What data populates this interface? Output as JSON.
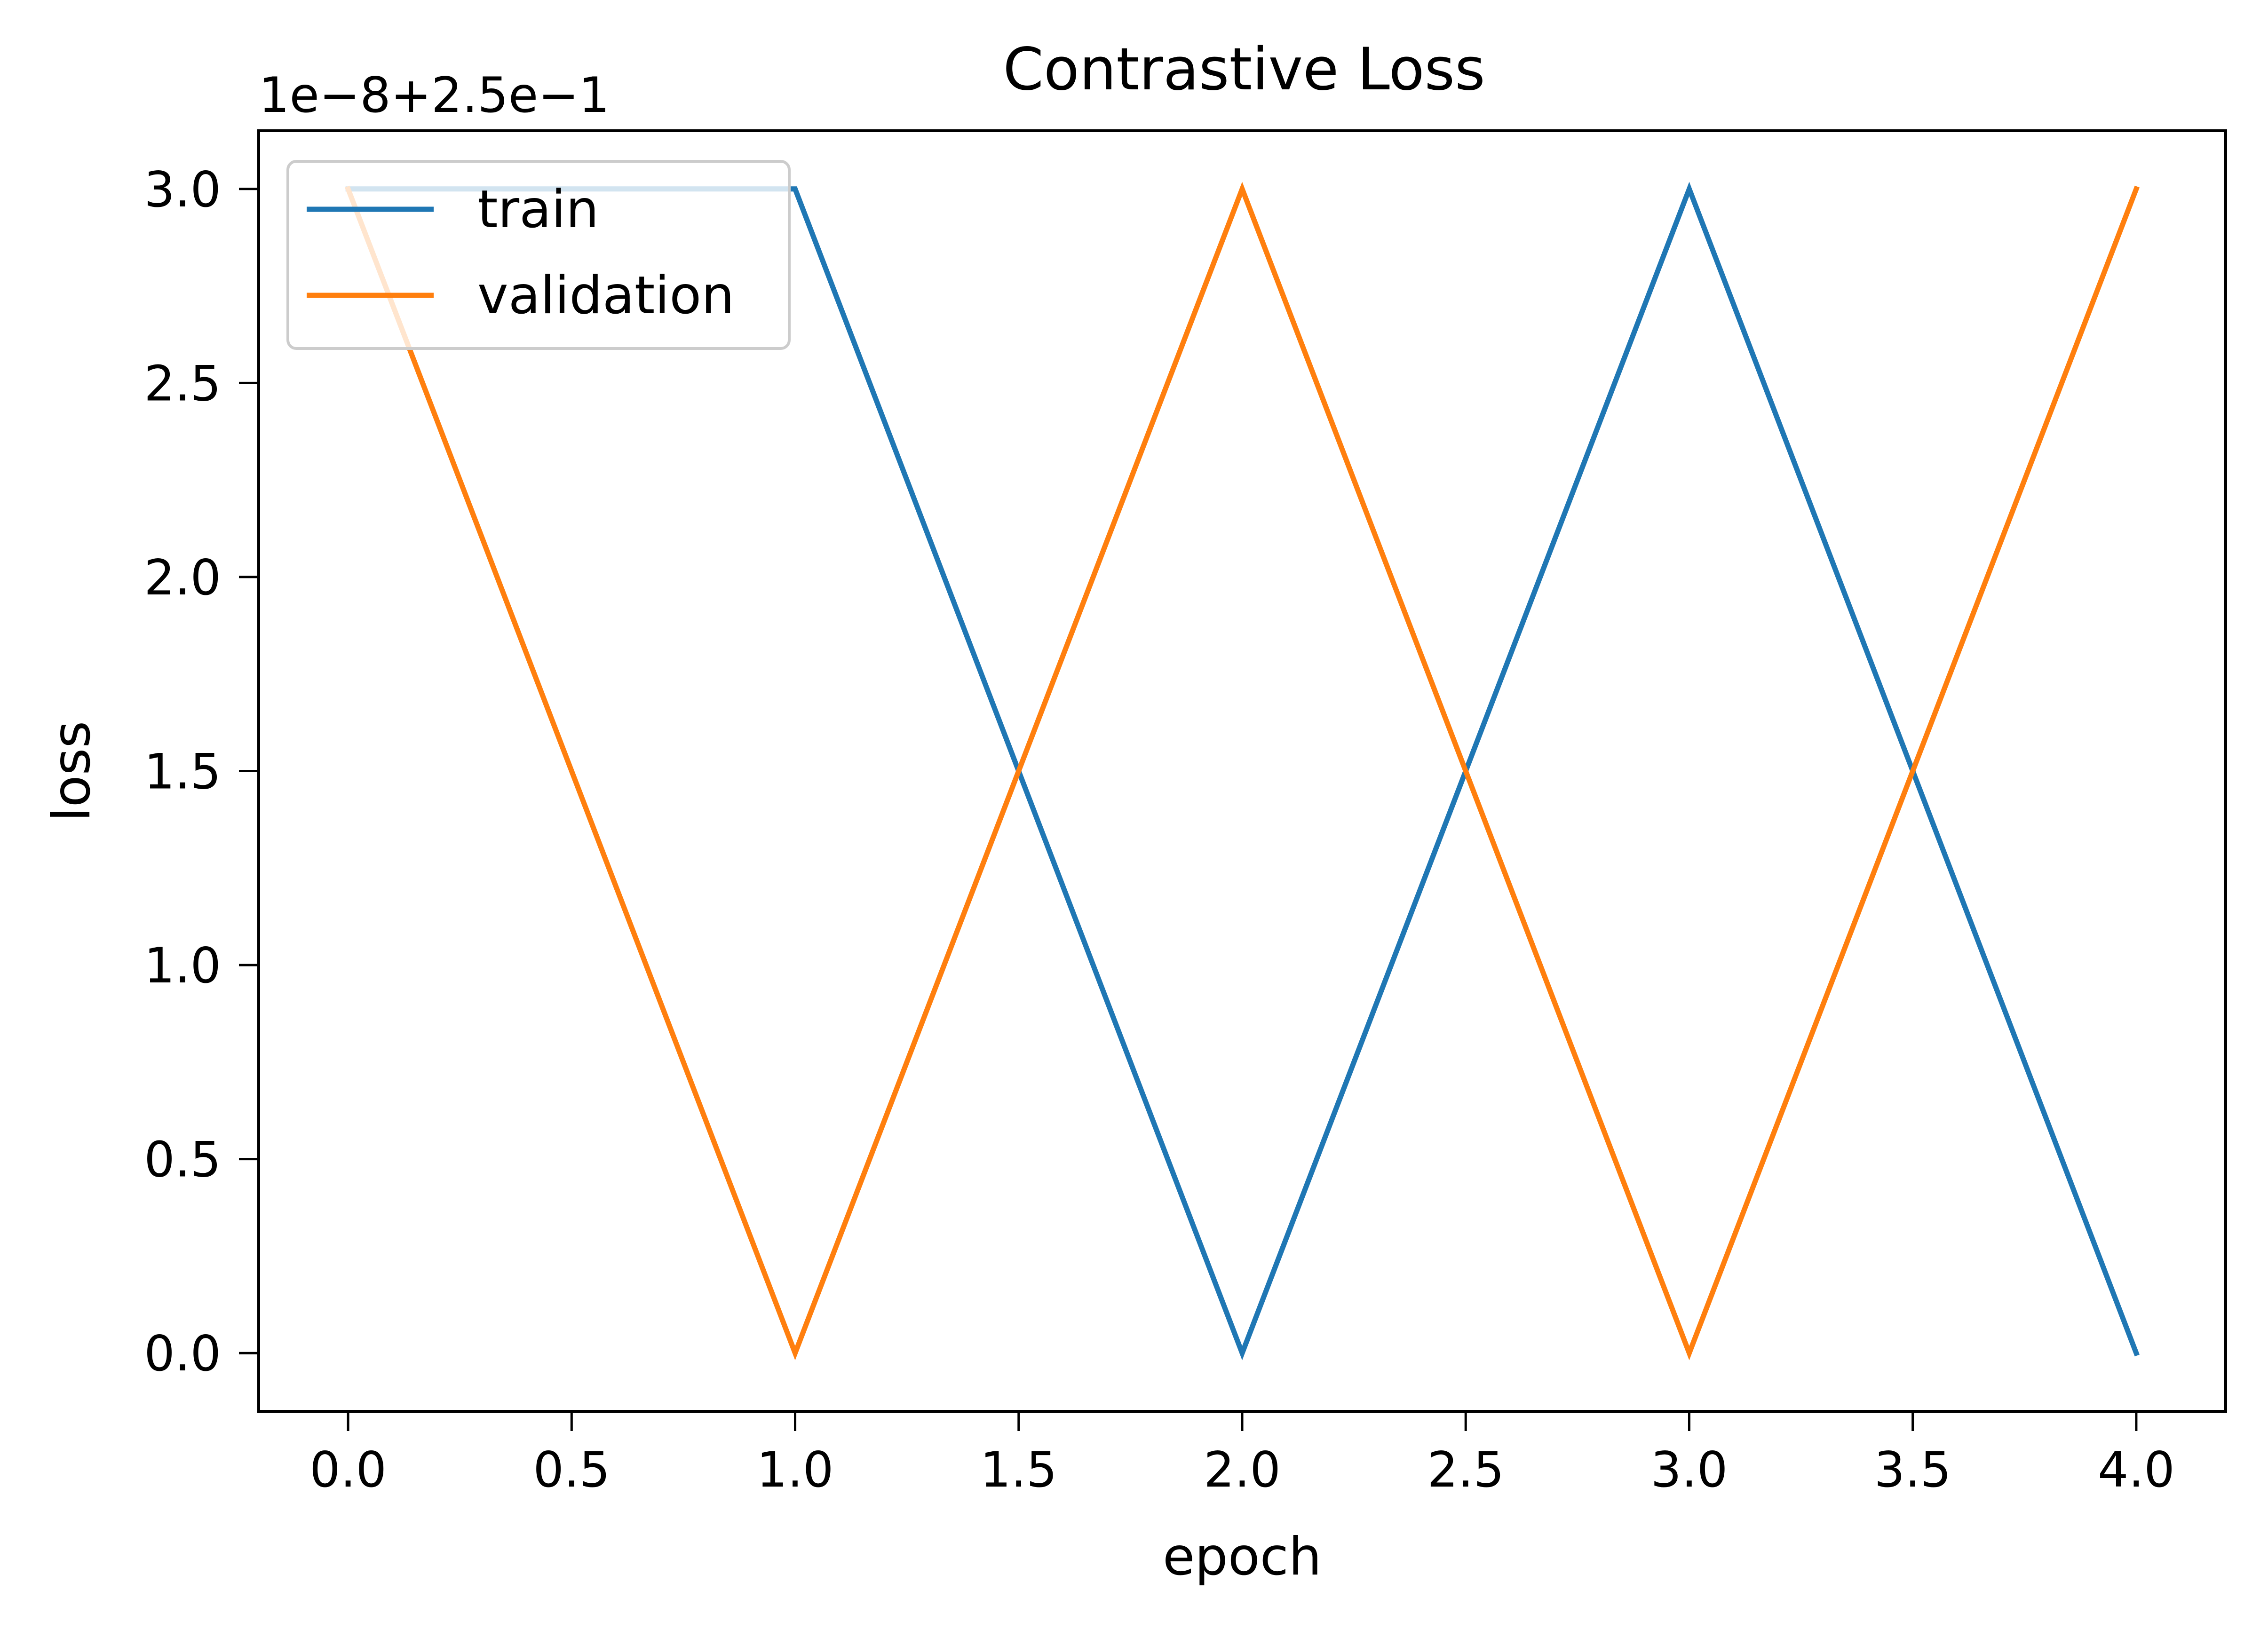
{
  "chart_data": {
    "type": "line",
    "title": "Contrastive Loss",
    "xlabel": "epoch",
    "ylabel": "loss",
    "offset_text": "1e−8+2.5e−1",
    "x": [
      0,
      1,
      2,
      3,
      4
    ],
    "series": [
      {
        "name": "train",
        "color": "#1f77b4",
        "values": [
          3.0,
          3.0,
          0.0,
          3.0,
          0.0
        ]
      },
      {
        "name": "validation",
        "color": "#ff7f0e",
        "values": [
          3.0,
          0.0,
          3.0,
          0.0,
          3.0
        ]
      }
    ],
    "xlim": [
      -0.2,
      4.2
    ],
    "ylim": [
      -0.15,
      3.15
    ],
    "xticks": [
      0.0,
      0.5,
      1.0,
      1.5,
      2.0,
      2.5,
      3.0,
      3.5,
      4.0
    ],
    "xtick_labels": [
      "0.0",
      "0.5",
      "1.0",
      "1.5",
      "2.0",
      "2.5",
      "3.0",
      "3.5",
      "4.0"
    ],
    "yticks": [
      0.0,
      0.5,
      1.0,
      1.5,
      2.0,
      2.5,
      3.0
    ],
    "ytick_labels": [
      "0.0",
      "0.5",
      "1.0",
      "1.5",
      "2.0",
      "2.5",
      "3.0"
    ],
    "grid": false,
    "legend_position": "upper-left"
  }
}
